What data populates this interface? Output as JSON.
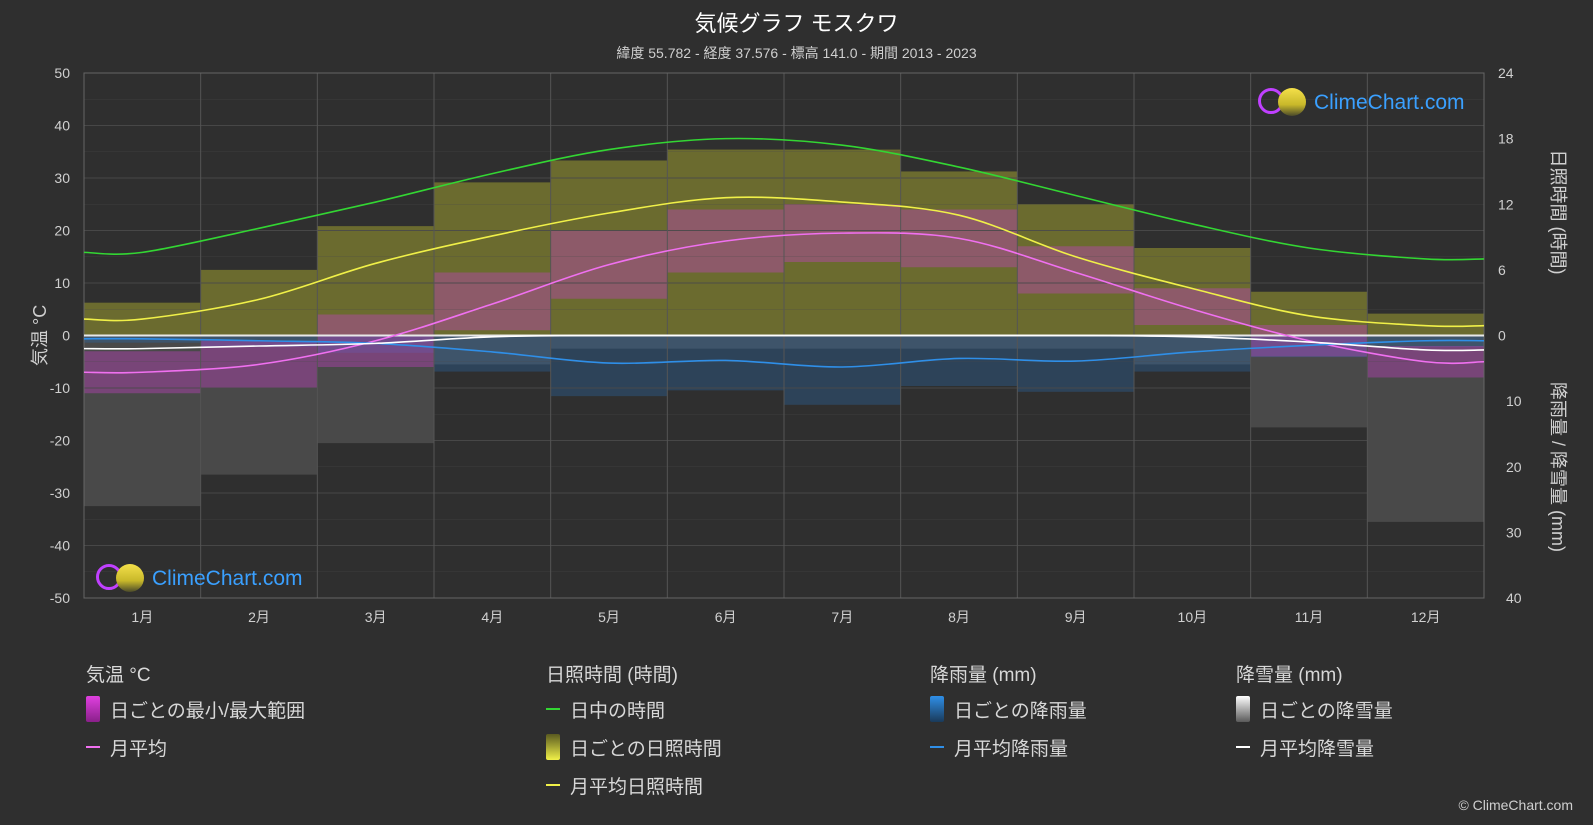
{
  "header": {
    "title": "気候グラフ モスクワ",
    "subtitle": "緯度 55.782 - 経度 37.576 - 標高 141.0 - 期間 2013 - 2023"
  },
  "axes": {
    "left_title": "気温 °C",
    "right_top_title": "日照時間 (時間)",
    "right_bottom_title": "降雨量 / 降雪量 (mm)"
  },
  "logo_text": "ClimeChart.com",
  "copyright": "© ClimeChart.com",
  "legend": {
    "temp": {
      "head": "気温 °C",
      "range": "日ごとの最小/最大範囲",
      "avg": "月平均"
    },
    "sun": {
      "head": "日照時間 (時間)",
      "daylight": "日中の時間",
      "daily": "日ごとの日照時間",
      "avg": "月平均日照時間"
    },
    "rain": {
      "head": "降雨量 (mm)",
      "daily": "日ごとの降雨量",
      "avg": "月平均降雨量"
    },
    "snow": {
      "head": "降雪量 (mm)",
      "daily": "日ごとの降雪量",
      "avg": "月平均降雪量"
    }
  },
  "colors": {
    "background": "#2f2f2f",
    "grid": "#4a4a4a",
    "daylight": "#33d633",
    "sunshine_avg": "#f0f048",
    "sunshine_band": "#9c9c30",
    "temp_avg": "#f070f0",
    "temp_band": "#c040c0",
    "rain_avg": "#2f8fe8",
    "rain_band": "#2a6aa8",
    "snow_avg": "#ffffff",
    "snow_band": "#6a6a6a"
  },
  "chart_data": {
    "type": "line",
    "categories": [
      "1月",
      "2月",
      "3月",
      "4月",
      "5月",
      "6月",
      "7月",
      "8月",
      "9月",
      "10月",
      "11月",
      "12月"
    ],
    "left_axis": {
      "ticks": [
        50,
        40,
        30,
        20,
        10,
        0,
        -10,
        -20,
        -30,
        -40,
        -50
      ],
      "ylim": [
        -50,
        50
      ]
    },
    "right_axis_sun": {
      "ticks": [
        24,
        18,
        12,
        6,
        0
      ],
      "ylim": [
        0,
        24
      ]
    },
    "right_axis_precip": {
      "ticks": [
        0,
        10,
        20,
        30,
        40
      ],
      "ylim": [
        0,
        40
      ]
    },
    "series": [
      {
        "name": "日中の時間",
        "axis": "sun",
        "values": [
          7.6,
          9.8,
          12.2,
          14.8,
          17.0,
          18.0,
          17.4,
          15.4,
          12.8,
          10.2,
          8.0,
          7.0
        ]
      },
      {
        "name": "月平均日照時間",
        "axis": "sun",
        "values": [
          1.5,
          3.3,
          6.6,
          9.1,
          11.2,
          12.6,
          12.2,
          11.0,
          7.2,
          4.3,
          1.8,
          0.9
        ]
      },
      {
        "name": "月平均",
        "axis": "temp",
        "values": [
          -7.0,
          -5.5,
          -1.0,
          6.0,
          13.5,
          18.0,
          19.5,
          18.5,
          12.0,
          5.0,
          -1.0,
          -5.0
        ]
      },
      {
        "name": "月平均降雨量",
        "axis": "precip",
        "values": [
          0.5,
          0.8,
          1.2,
          2.5,
          4.2,
          3.8,
          4.8,
          3.5,
          3.9,
          2.5,
          1.5,
          0.8
        ]
      },
      {
        "name": "月平均降雪量",
        "axis": "precip",
        "values": [
          2.0,
          1.6,
          1.2,
          0.2,
          0.0,
          0.0,
          0.0,
          0.0,
          0.0,
          0.2,
          1.0,
          2.2
        ]
      }
    ],
    "daily_range_temp": {
      "max": [
        -3,
        -1,
        4,
        12,
        20,
        24,
        25,
        24,
        17,
        9,
        2,
        -2
      ],
      "min": [
        -11,
        -10,
        -6,
        1,
        7,
        12,
        14,
        13,
        8,
        2,
        -4,
        -8
      ]
    },
    "daily_sunshine_band_max": [
      3,
      6,
      10,
      14,
      16,
      17,
      17,
      15,
      12,
      8,
      4,
      2
    ]
  }
}
